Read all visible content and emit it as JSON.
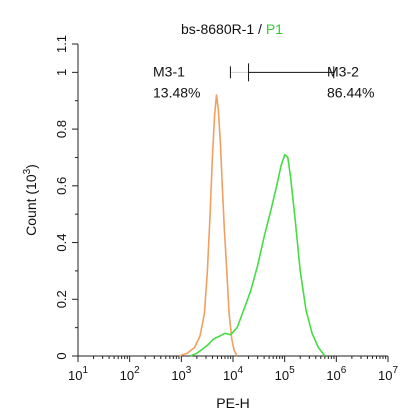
{
  "chart_data": {
    "type": "line",
    "title": {
      "sample": "bs-8680R-1",
      "separator": " / ",
      "gate": "P1",
      "gate_color": "#33cc33"
    },
    "xlabel": "PE-H",
    "ylabel": "Count (10",
    "ylabel_exp": "3",
    "ylabel_close": ")",
    "x_scale": "log",
    "xlim": [
      10,
      10000000
    ],
    "ylim": [
      0,
      1.1
    ],
    "x_ticks": [
      {
        "base": "10",
        "exp": "1"
      },
      {
        "base": "10",
        "exp": "2"
      },
      {
        "base": "10",
        "exp": "3"
      },
      {
        "base": "10",
        "exp": "4"
      },
      {
        "base": "10",
        "exp": "5"
      },
      {
        "base": "10",
        "exp": "6"
      },
      {
        "base": "10",
        "exp": "7"
      }
    ],
    "y_ticks": [
      "0",
      "0.2",
      "0.4",
      "0.6",
      "0.8",
      "1",
      "1.1"
    ],
    "gates": [
      {
        "name": "M3-1",
        "percent": "13.48%"
      },
      {
        "name": "M3-2",
        "percent": "86.44%"
      }
    ],
    "gate_divider_x": 20000,
    "series": [
      {
        "color": "#f0a060",
        "points": [
          [
            900,
            0
          ],
          [
            1300,
            0.01
          ],
          [
            1800,
            0.03
          ],
          [
            2300,
            0.07
          ],
          [
            2800,
            0.15
          ],
          [
            3200,
            0.3
          ],
          [
            3600,
            0.5
          ],
          [
            4000,
            0.7
          ],
          [
            4400,
            0.85
          ],
          [
            4800,
            0.92
          ],
          [
            5200,
            0.87
          ],
          [
            5700,
            0.75
          ],
          [
            6200,
            0.6
          ],
          [
            6800,
            0.45
          ],
          [
            7600,
            0.3
          ],
          [
            8400,
            0.15
          ],
          [
            9500,
            0.06
          ],
          [
            10500,
            0.02
          ],
          [
            12000,
            0
          ]
        ]
      },
      {
        "color": "#44dd44",
        "points": [
          [
            1500,
            0
          ],
          [
            2000,
            0.01
          ],
          [
            2600,
            0.025
          ],
          [
            3300,
            0.04
          ],
          [
            4200,
            0.06
          ],
          [
            5500,
            0.07
          ],
          [
            7000,
            0.08
          ],
          [
            9000,
            0.075
          ],
          [
            12000,
            0.1
          ],
          [
            16000,
            0.16
          ],
          [
            22000,
            0.23
          ],
          [
            30000,
            0.32
          ],
          [
            40000,
            0.42
          ],
          [
            55000,
            0.52
          ],
          [
            70000,
            0.6
          ],
          [
            85000,
            0.67
          ],
          [
            100000,
            0.71
          ],
          [
            115000,
            0.7
          ],
          [
            130000,
            0.63
          ],
          [
            160000,
            0.48
          ],
          [
            200000,
            0.3
          ],
          [
            260000,
            0.16
          ],
          [
            340000,
            0.08
          ],
          [
            450000,
            0.03
          ],
          [
            600000,
            0
          ]
        ]
      }
    ]
  }
}
